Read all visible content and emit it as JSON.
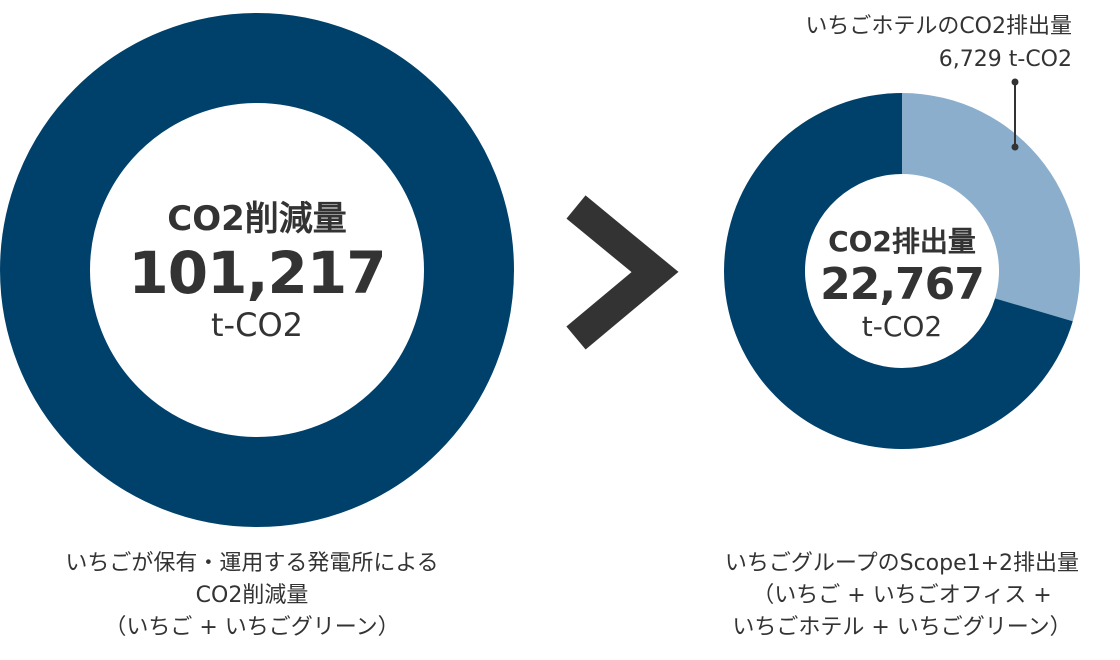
{
  "chart_data": [
    {
      "type": "pie",
      "donut": true,
      "center_label": "CO2削減量",
      "center_value": "101,217",
      "center_unit": "t-CO2",
      "slices": [
        {
          "value": 101217,
          "color": "#00416b"
        }
      ],
      "caption": [
        "いちごが保有・運用する発電所による",
        "CO2削減量",
        "（いちご + いちごグリーン）"
      ]
    },
    {
      "type": "pie",
      "donut": true,
      "center_label": "CO2排出量",
      "center_value": "22,767",
      "center_unit": "t-CO2",
      "total": 22767,
      "slices": [
        {
          "name": "いちごホテルのCO2排出量",
          "value_label": "6,729 t-CO2",
          "value": 6729,
          "color": "#8aaecb"
        },
        {
          "value": 16038,
          "color": "#00416b"
        }
      ],
      "caption": [
        "いちごグループのScope1+2排出量",
        "（いちご + いちごオフィス +",
        "いちごホテル + いちごグリーン）"
      ]
    }
  ],
  "arrow": {
    "icon": "chevron-right-icon",
    "color": "#333333"
  }
}
